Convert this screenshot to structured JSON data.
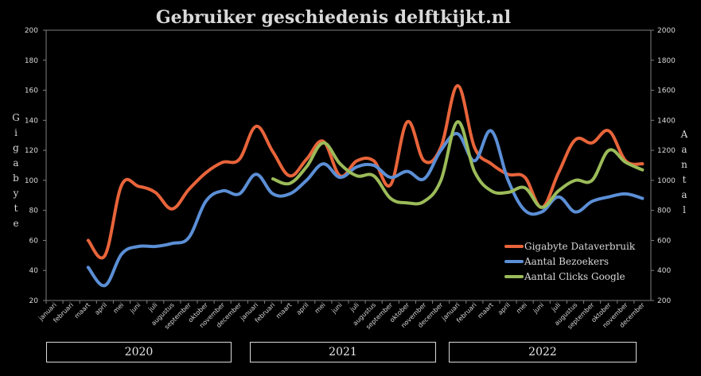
{
  "chart_data": {
    "type": "line",
    "title": "Gebruiker geschiedenis delftkijkt.nl",
    "ylabel_left": "Gigabyte",
    "ylabel_right": "Aantal",
    "ylim_left": [
      20,
      200
    ],
    "ylim_right": [
      200,
      2000
    ],
    "yticks_left": [
      "20",
      "40",
      "60",
      "80",
      "100",
      "120",
      "140",
      "160",
      "180",
      "200"
    ],
    "yticks_right": [
      "200",
      "400",
      "600",
      "800",
      "1000",
      "1200",
      "1400",
      "1600",
      "1800",
      "2000"
    ],
    "categories": [
      "januari",
      "februari",
      "maart",
      "april",
      "mei",
      "juni",
      "juli",
      "augustus",
      "september",
      "oktober",
      "november",
      "december",
      "januari",
      "februari",
      "maart",
      "april",
      "mei",
      "juni",
      "juli",
      "augustus",
      "september",
      "oktober",
      "november",
      "december",
      "januari",
      "februari",
      "maart",
      "april",
      "mei",
      "juni",
      "juli",
      "augustus",
      "september",
      "oktober",
      "november",
      "december"
    ],
    "years": [
      "2020",
      "2021",
      "2022"
    ],
    "legend_position": "bottom-right",
    "grid": false,
    "series": [
      {
        "name": "Gigabyte Dataverbruik",
        "axis": "left",
        "color": "#e8643a",
        "values": [
          null,
          null,
          60,
          50,
          97,
          96,
          92,
          81,
          94,
          105,
          112,
          114,
          136,
          119,
          103,
          114,
          126,
          103,
          113,
          113,
          97,
          139,
          113,
          122,
          163,
          122,
          111,
          104,
          102,
          82,
          105,
          127,
          125,
          133,
          113,
          111
        ]
      },
      {
        "name": "Aantal Bezoekers",
        "axis": "right",
        "color": "#5b8fd6",
        "values": [
          null,
          null,
          420,
          300,
          510,
          560,
          560,
          580,
          620,
          860,
          930,
          910,
          1040,
          910,
          910,
          1000,
          1110,
          1020,
          1090,
          1100,
          1020,
          1060,
          1010,
          1200,
          1310,
          1130,
          1330,
          1000,
          800,
          790,
          890,
          790,
          860,
          890,
          910,
          880
        ]
      },
      {
        "name": "Aantal Clicks Google",
        "axis": "right",
        "color": "#9bbb59",
        "values": [
          null,
          null,
          null,
          null,
          null,
          null,
          null,
          null,
          null,
          null,
          null,
          null,
          null,
          1010,
          980,
          1090,
          1250,
          1110,
          1030,
          1030,
          880,
          850,
          860,
          1000,
          1390,
          1060,
          930,
          920,
          950,
          820,
          930,
          1000,
          1000,
          1200,
          1120,
          1070
        ]
      }
    ]
  }
}
